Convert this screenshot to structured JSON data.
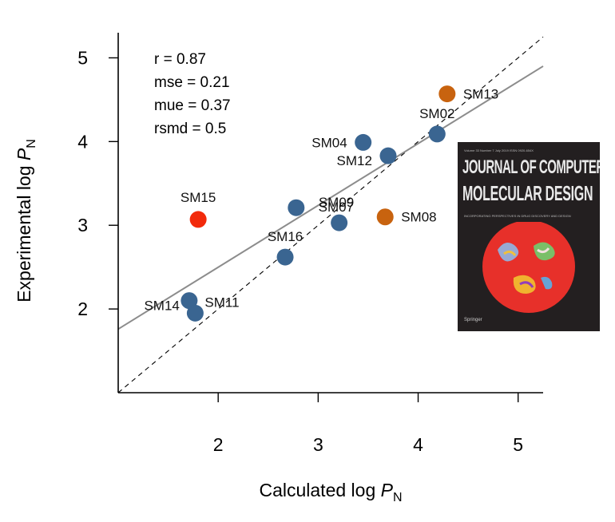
{
  "chart_data": {
    "type": "scatter",
    "xlabel": {
      "main": "Calculated log ",
      "var": "P",
      "sub": "N"
    },
    "ylabel": {
      "main": "Experimental log ",
      "var": "P",
      "sub": "N"
    },
    "xlim": [
      1.0,
      5.25
    ],
    "ylim": [
      1.0,
      5.3
    ],
    "xticks": [
      2,
      3,
      4,
      5
    ],
    "yticks": [
      2,
      3,
      4,
      5
    ],
    "stats": [
      "r = 0.87",
      "mse = 0.21",
      "mue = 0.37",
      "rsmd = 0.5"
    ],
    "identity_line": true,
    "fit_line": {
      "x": [
        1.0,
        5.25
      ],
      "y": [
        1.76,
        4.9
      ],
      "color": "#8c8c8c"
    },
    "points": [
      {
        "label": "SM13",
        "x": 4.29,
        "y": 4.57,
        "color": "#c8630f"
      },
      {
        "label": "SM02",
        "x": 4.19,
        "y": 4.09,
        "color": "#3a6591"
      },
      {
        "label": "SM04",
        "x": 3.45,
        "y": 3.99,
        "color": "#3a6591"
      },
      {
        "label": "SM12",
        "x": 3.7,
        "y": 3.83,
        "color": "#3a6591"
      },
      {
        "label": "SM09",
        "x": 2.78,
        "y": 3.21,
        "color": "#3a6591"
      },
      {
        "label": "SM07",
        "x": 3.21,
        "y": 3.03,
        "color": "#3a6591"
      },
      {
        "label": "SM15",
        "x": 1.8,
        "y": 3.07,
        "color": "#f22a0b"
      },
      {
        "label": "SM08",
        "x": 3.67,
        "y": 3.1,
        "color": "#c8630f"
      },
      {
        "label": "SM16",
        "x": 2.67,
        "y": 2.62,
        "color": "#3a6591"
      },
      {
        "label": "SM14",
        "x": 1.71,
        "y": 2.1,
        "color": "#3a6591"
      },
      {
        "label": "SM11",
        "x": 1.77,
        "y": 1.95,
        "color": "#3a6591"
      }
    ]
  },
  "cover": {
    "small_header": "Volume 33 Number 7 July 2019 ISSN 0920-654X",
    "title_line1": "JOURNAL OF COMPUTER-AIDED",
    "title_line2": "MOLECULAR DESIGN",
    "subtitle": "INCORPORATING PERSPECTIVES IN DRUG DISCOVERY AND DESIGN",
    "publisher": "Springer"
  }
}
